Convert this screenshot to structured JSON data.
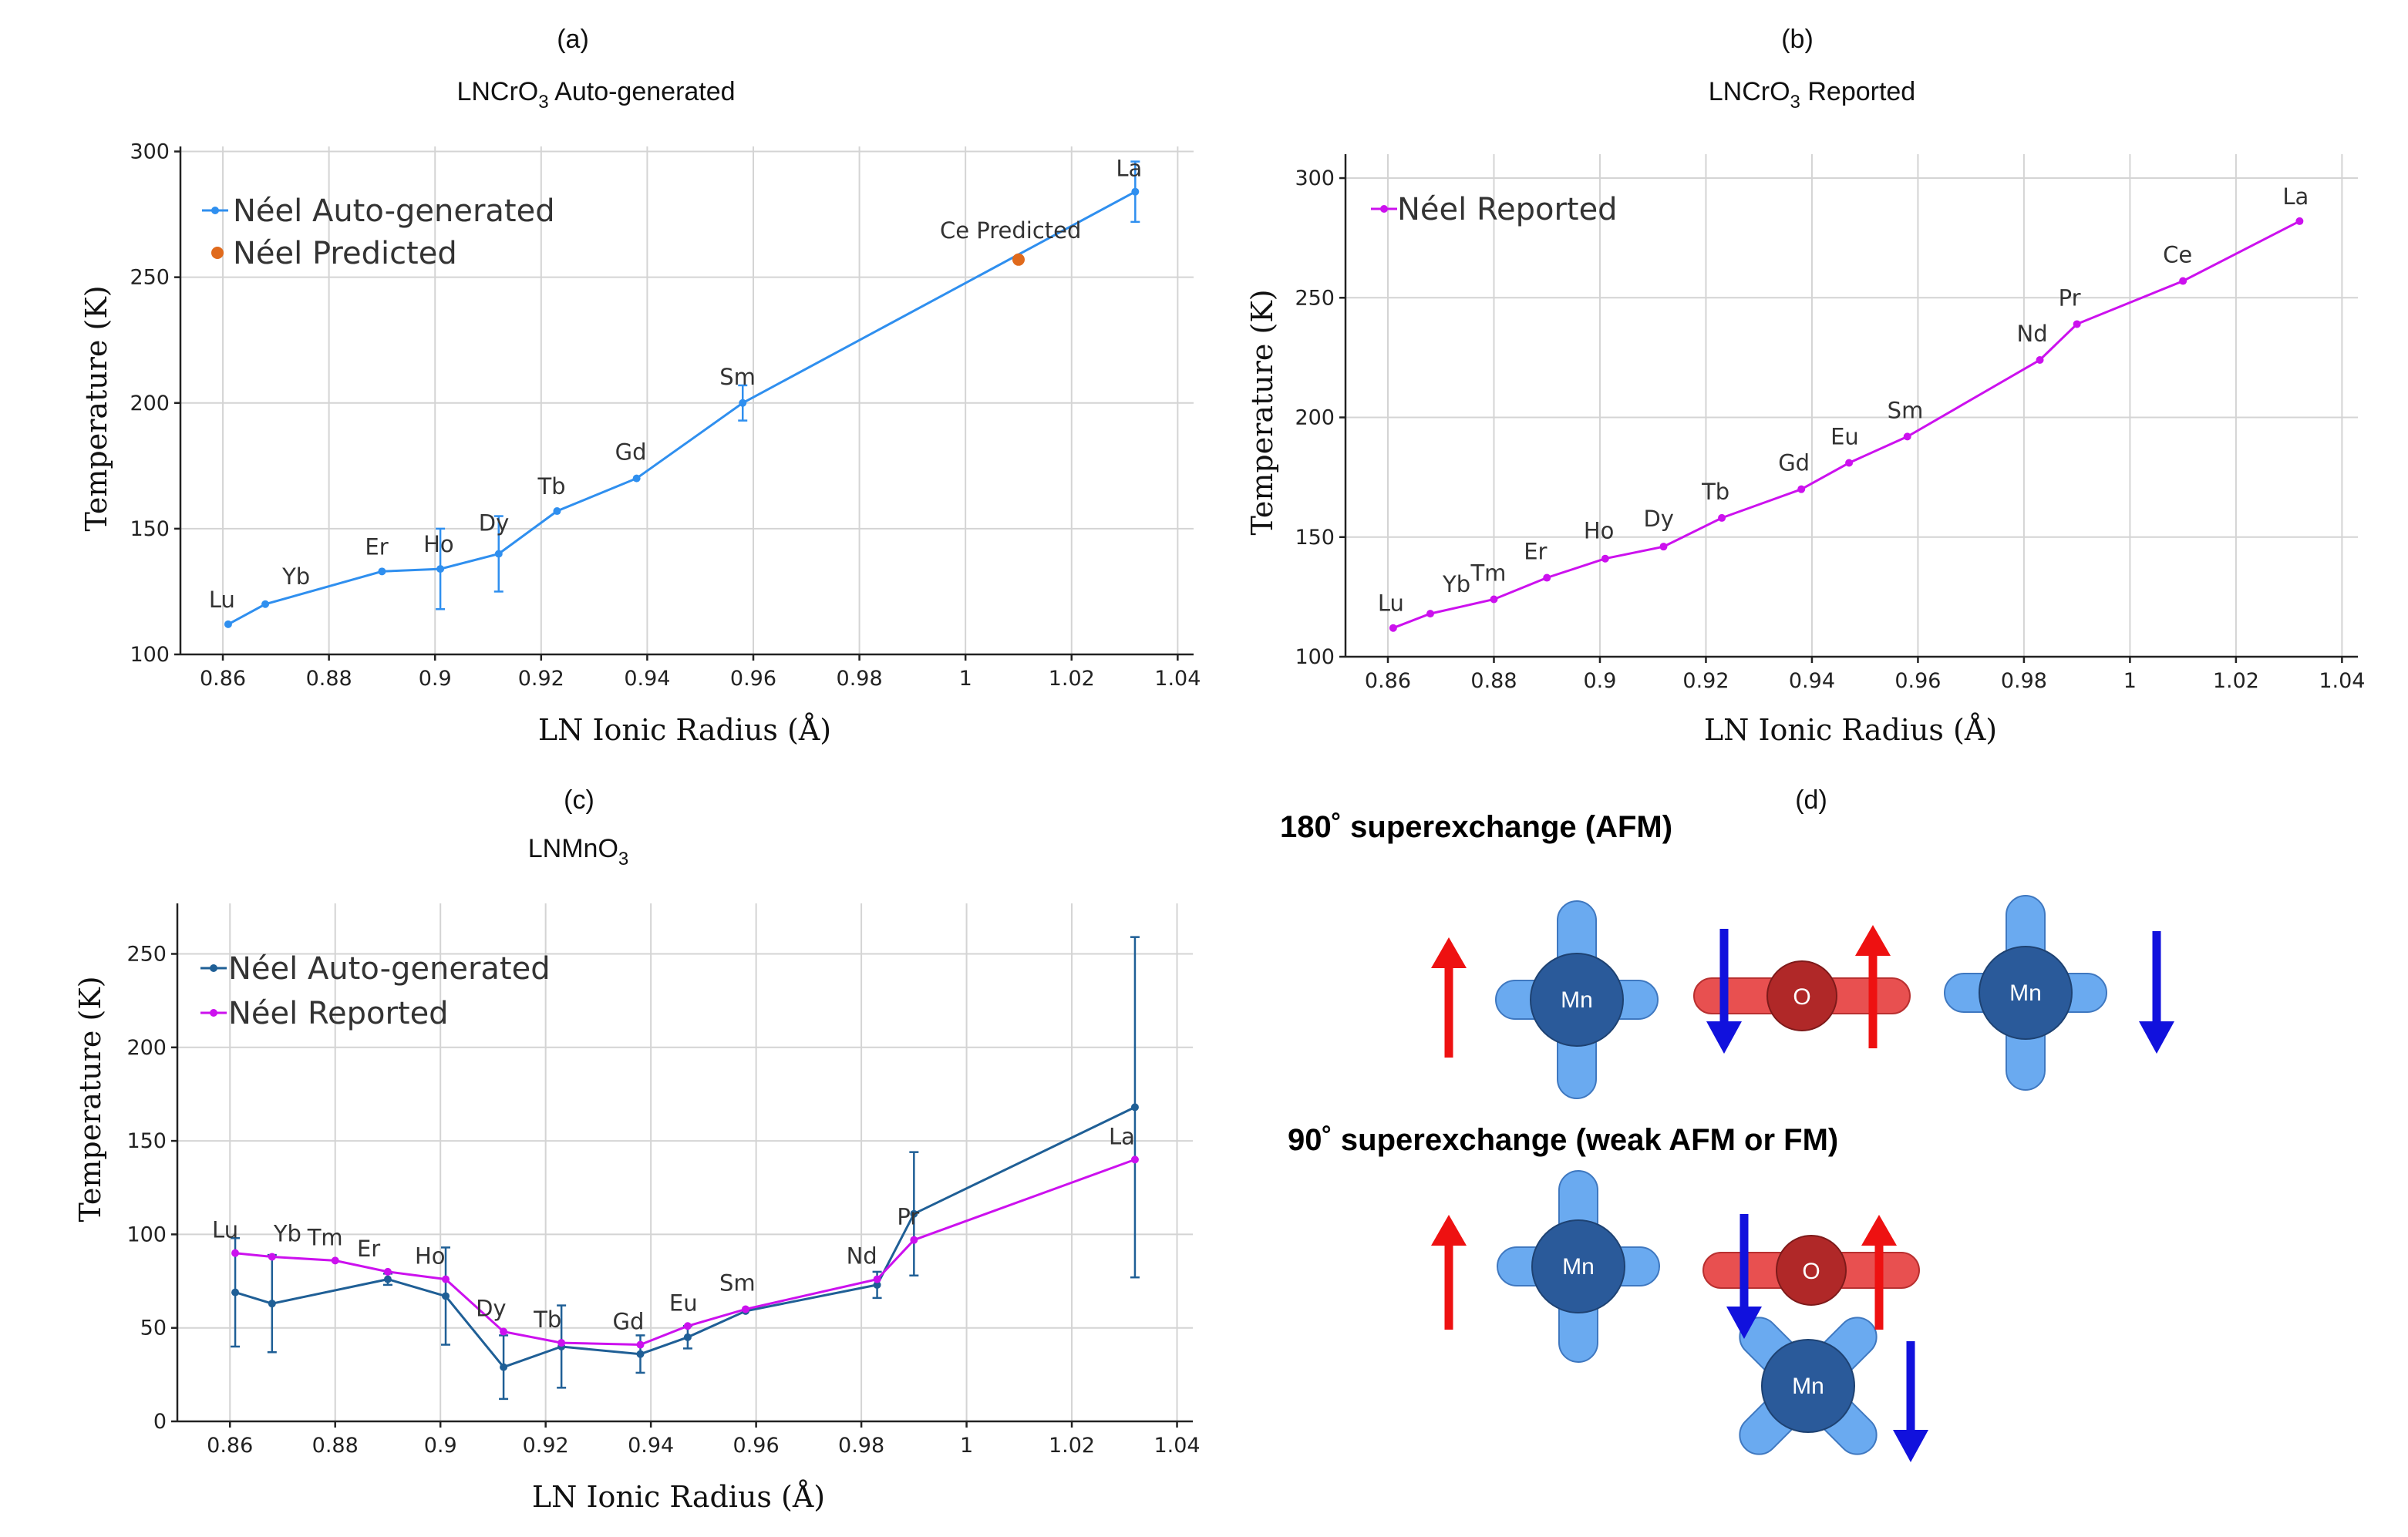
{
  "panels": {
    "a": "(a)",
    "b": "(b)",
    "c": "(c)",
    "d": "(d)"
  },
  "colors": {
    "auto_a": "#2f8fef",
    "predicted": "#e06a1c",
    "reported": "#cc11ee",
    "auto_c": "#1f5f96",
    "spin_up": "#ee1111",
    "spin_down": "#1111dd",
    "mn_lobe": "#6aaaf0",
    "mn_core": "#2a5a9a",
    "o_lobe": "#e85050",
    "o_core": "#b02828"
  },
  "chart_data": [
    {
      "id": "a",
      "type": "line",
      "title": "LNCrO₃ Auto-generated",
      "title_main": "LNCrO",
      "title_sub": "3",
      "title_rest": " Auto-generated",
      "xlabel": "LN Ionic Radius (Å)",
      "ylabel": "Temperature (K)",
      "xlim": [
        0.852,
        1.043
      ],
      "ylim": [
        100,
        302
      ],
      "xticks": [
        0.86,
        0.88,
        0.9,
        0.92,
        0.94,
        0.96,
        0.98,
        1,
        1.02,
        1.04
      ],
      "xtick_labels": [
        "0.86",
        "0.88",
        "0.9",
        "0.92",
        "0.94",
        "0.96",
        "0.98",
        "1",
        "1.02",
        "1.04"
      ],
      "yticks": [
        100,
        150,
        200,
        250,
        300
      ],
      "ytick_labels": [
        "100",
        "150",
        "200",
        "250",
        "300"
      ],
      "legend": [
        "Néel Auto-generated",
        "Néel Predicted"
      ],
      "legend_position": "top-left",
      "grid": true,
      "series": [
        {
          "name": "Néel Auto-generated",
          "color": "#2f8fef",
          "points": [
            {
              "label": "Lu",
              "x": 0.861,
              "y": 112,
              "err": 0
            },
            {
              "label": "Yb",
              "x": 0.868,
              "y": 120,
              "err": 0
            },
            {
              "label": "Er",
              "x": 0.89,
              "y": 133,
              "err": 0
            },
            {
              "label": "Ho",
              "x": 0.901,
              "y": 134,
              "err": 16
            },
            {
              "label": "Dy",
              "x": 0.912,
              "y": 140,
              "err": 15
            },
            {
              "label": "Tb",
              "x": 0.923,
              "y": 157,
              "err": 0
            },
            {
              "label": "Gd",
              "x": 0.938,
              "y": 170,
              "err": 0
            },
            {
              "label": "Sm",
              "x": 0.958,
              "y": 200,
              "err": 7
            },
            {
              "label": "La",
              "x": 1.032,
              "y": 284,
              "err": 12
            }
          ]
        },
        {
          "name": "Néel Predicted",
          "color": "#e06a1c",
          "points": [
            {
              "label": "Ce Predicted",
              "x": 1.01,
              "y": 257,
              "err": 0
            }
          ]
        }
      ]
    },
    {
      "id": "b",
      "type": "line",
      "title": "LNCrO₃ Reported",
      "title_main": "LNCrO",
      "title_sub": "3",
      "title_rest": " Reported",
      "xlabel": "LN Ionic Radius (Å)",
      "ylabel": "Temperature (K)",
      "xlim": [
        0.852,
        1.043
      ],
      "ylim": [
        100,
        310
      ],
      "xticks": [
        0.86,
        0.88,
        0.9,
        0.92,
        0.94,
        0.96,
        0.98,
        1,
        1.02,
        1.04
      ],
      "xtick_labels": [
        "0.86",
        "0.88",
        "0.9",
        "0.92",
        "0.94",
        "0.96",
        "0.98",
        "1",
        "1.02",
        "1.04"
      ],
      "yticks": [
        100,
        150,
        200,
        250,
        300
      ],
      "ytick_labels": [
        "100",
        "150",
        "200",
        "250",
        "300"
      ],
      "legend": [
        "Néel Reported"
      ],
      "legend_position": "top-left",
      "grid": true,
      "series": [
        {
          "name": "Néel Reported",
          "color": "#cc11ee",
          "points": [
            {
              "label": "Lu",
              "x": 0.861,
              "y": 112
            },
            {
              "label": "Yb",
              "x": 0.868,
              "y": 118
            },
            {
              "label": "Tm",
              "x": 0.88,
              "y": 124
            },
            {
              "label": "Er",
              "x": 0.89,
              "y": 133
            },
            {
              "label": "Ho",
              "x": 0.901,
              "y": 141
            },
            {
              "label": "Dy",
              "x": 0.912,
              "y": 146
            },
            {
              "label": "Tb",
              "x": 0.923,
              "y": 158
            },
            {
              "label": "Gd",
              "x": 0.938,
              "y": 170
            },
            {
              "label": "Eu",
              "x": 0.947,
              "y": 181
            },
            {
              "label": "Sm",
              "x": 0.958,
              "y": 192
            },
            {
              "label": "Nd",
              "x": 0.983,
              "y": 224
            },
            {
              "label": "Pr",
              "x": 0.99,
              "y": 239
            },
            {
              "label": "Ce",
              "x": 1.01,
              "y": 257
            },
            {
              "label": "La",
              "x": 1.032,
              "y": 282
            }
          ]
        }
      ]
    },
    {
      "id": "c",
      "type": "line",
      "title": "LNMnO₃",
      "title_main": "LNMnO",
      "title_sub": "3",
      "title_rest": "",
      "xlabel": "LN Ionic Radius (Å)",
      "ylabel": "Temperature (K)",
      "xlim": [
        0.85,
        1.043
      ],
      "ylim": [
        0,
        277
      ],
      "xticks": [
        0.86,
        0.88,
        0.9,
        0.92,
        0.94,
        0.96,
        0.98,
        1,
        1.02,
        1.04
      ],
      "xtick_labels": [
        "0.86",
        "0.88",
        "0.9",
        "0.92",
        "0.94",
        "0.96",
        "0.98",
        "1",
        "1.02",
        "1.04"
      ],
      "yticks": [
        0,
        50,
        100,
        150,
        200,
        250
      ],
      "ytick_labels": [
        "0",
        "50",
        "100",
        "150",
        "200",
        "250"
      ],
      "legend": [
        "Néel Auto-generated",
        "Néel Reported"
      ],
      "legend_position": "top-left",
      "grid": true,
      "series": [
        {
          "name": "Néel Auto-generated",
          "color": "#1f5f96",
          "points": [
            {
              "x": 0.861,
              "y": 69,
              "err": 29
            },
            {
              "x": 0.868,
              "y": 63,
              "err": 26
            },
            {
              "x": 0.89,
              "y": 76,
              "err": 3
            },
            {
              "x": 0.901,
              "y": 67,
              "err": 26
            },
            {
              "x": 0.912,
              "y": 29,
              "err": 17
            },
            {
              "x": 0.923,
              "y": 40,
              "err": 22
            },
            {
              "x": 0.938,
              "y": 36,
              "err": 10
            },
            {
              "x": 0.947,
              "y": 45,
              "err": 6
            },
            {
              "x": 0.958,
              "y": 59,
              "err": 0
            },
            {
              "x": 0.983,
              "y": 73,
              "err": 7
            },
            {
              "x": 0.99,
              "y": 111,
              "err": 33
            },
            {
              "x": 1.032,
              "y": 168,
              "err": 91
            }
          ]
        },
        {
          "name": "Néel Reported",
          "color": "#cc11ee",
          "points": [
            {
              "label": "Lu",
              "x": 0.861,
              "y": 90
            },
            {
              "label": "Yb",
              "x": 0.868,
              "y": 88
            },
            {
              "label": "Tm",
              "x": 0.88,
              "y": 86
            },
            {
              "label": "Er",
              "x": 0.89,
              "y": 80
            },
            {
              "label": "Ho",
              "x": 0.901,
              "y": 76
            },
            {
              "label": "Dy",
              "x": 0.912,
              "y": 48
            },
            {
              "label": "Tb",
              "x": 0.923,
              "y": 42
            },
            {
              "label": "Gd",
              "x": 0.938,
              "y": 41
            },
            {
              "label": "Eu",
              "x": 0.947,
              "y": 51
            },
            {
              "label": "Sm",
              "x": 0.958,
              "y": 60
            },
            {
              "label": "Nd",
              "x": 0.983,
              "y": 76
            },
            {
              "label": "Pr",
              "x": 0.99,
              "y": 97
            },
            {
              "label": "La",
              "x": 1.032,
              "y": 140
            }
          ]
        }
      ]
    }
  ],
  "diagram": {
    "title_180": "180˚ superexchange (AFM)",
    "title_90": "90˚ superexchange (weak AFM or FM)",
    "mn_label": "Mn",
    "o_label": "O"
  }
}
